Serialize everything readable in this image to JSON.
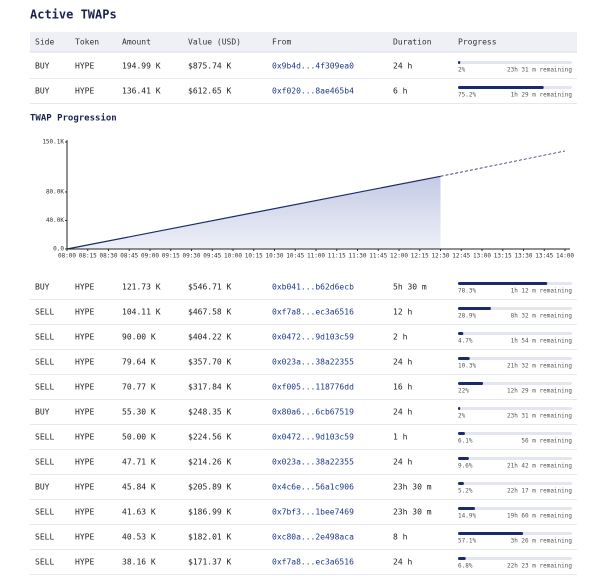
{
  "title": "Active TWAPs",
  "side_colors": {
    "BUY": "#1d8a5c",
    "SELL": "#d9463e"
  },
  "bar_color": "#1b2a6b",
  "track_color": "#e3e6ee",
  "table": {
    "headers": [
      "Side",
      "Token",
      "Amount",
      "Value (USD)",
      "From",
      "Duration",
      "Progress"
    ],
    "rows": [
      [
        "BUY",
        "HYPE",
        "194.99 K",
        "$875.74 K",
        "0x9b4d...4f309ea0",
        "24 h",
        "2%",
        "23h 31 m remaining"
      ],
      [
        "BUY",
        "HYPE",
        "136.41 K",
        "$612.65 K",
        "0xf020...8ae465b4",
        "6 h",
        "75.2%",
        "1h 29 m remaining"
      ]
    ],
    "progress": [
      2,
      75.2
    ]
  },
  "chart": {
    "type": "area",
    "title": "TWAP Progression",
    "xticks": [
      "08:00",
      "08:15",
      "08:30",
      "08:45",
      "09:00",
      "09:15",
      "09:30",
      "09:45",
      "10:00",
      "10:15",
      "10:30",
      "10:45",
      "11:00",
      "11:15",
      "11:30",
      "11:45",
      "12:00",
      "12:15",
      "12:30",
      "12:45",
      "13:00",
      "13:15",
      "13:30",
      "13:45",
      "14:00"
    ],
    "ylim": [
      0,
      150100
    ],
    "yticks": [
      {
        "value": 0,
        "label": "0.0"
      },
      {
        "value": 40000,
        "label": "40.0K"
      },
      {
        "value": 80000,
        "label": "80.0K"
      },
      {
        "value": 150100,
        "label": "150.1K"
      }
    ],
    "series": [
      {
        "x": [
          "08:00",
          "12:30"
        ],
        "values": [
          0,
          102000
        ],
        "color": "#1b2a6b",
        "style": "solid",
        "fill": true
      },
      {
        "x": [
          "12:30",
          "14:00"
        ],
        "values": [
          102000,
          137500
        ],
        "color": "#1b2a6b",
        "style": "dashed",
        "fill": false
      }
    ]
  },
  "table2": {
    "rows": [
      [
        "BUY",
        "HYPE",
        "121.73 K",
        "$546.71 K",
        "0xb041...b62d6ecb",
        "5h 30 m",
        "78.3%",
        "1h 12 m remaining"
      ],
      [
        "SELL",
        "HYPE",
        "104.11 K",
        "$467.58 K",
        "0xf7a8...ec3a6516",
        "12 h",
        "28.9%",
        "8h 32 m remaining"
      ],
      [
        "SELL",
        "HYPE",
        "90.00 K",
        "$404.22 K",
        "0x0472...9d103c59",
        "2 h",
        "4.7%",
        "1h 54 m remaining"
      ],
      [
        "SELL",
        "HYPE",
        "79.64 K",
        "$357.70 K",
        "0x023a...38a22355",
        "24 h",
        "10.3%",
        "21h 32 m remaining"
      ],
      [
        "SELL",
        "HYPE",
        "70.77 K",
        "$317.84 K",
        "0xf005...118776dd",
        "16 h",
        "22%",
        "12h 29 m remaining"
      ],
      [
        "BUY",
        "HYPE",
        "55.30 K",
        "$248.35 K",
        "0x80a6...6cb67519",
        "24 h",
        "2%",
        "23h 31 m remaining"
      ],
      [
        "SELL",
        "HYPE",
        "50.00 K",
        "$224.56 K",
        "0x0472...9d103c59",
        "1 h",
        "6.1%",
        "56 m remaining"
      ],
      [
        "SELL",
        "HYPE",
        "47.71 K",
        "$214.26 K",
        "0x023a...38a22355",
        "24 h",
        "9.6%",
        "21h 42 m remaining"
      ],
      [
        "BUY",
        "HYPE",
        "45.84 K",
        "$205.89 K",
        "0x4c6e...56a1c906",
        "23h 30 m",
        "5.2%",
        "22h 17 m remaining"
      ],
      [
        "SELL",
        "HYPE",
        "41.63 K",
        "$186.99 K",
        "0x7bf3...1bee7469",
        "23h 30 m",
        "14.9%",
        "19h 60 m remaining"
      ],
      [
        "SELL",
        "HYPE",
        "40.53 K",
        "$182.01 K",
        "0xc80a...2e498aca",
        "8 h",
        "57.1%",
        "3h 26 m remaining"
      ],
      [
        "SELL",
        "HYPE",
        "38.16 K",
        "$171.37 K",
        "0xf7a8...ec3a6516",
        "24 h",
        "6.8%",
        "22h 23 m remaining"
      ]
    ],
    "progress": [
      78.3,
      28.9,
      4.7,
      10.3,
      22,
      2,
      6.1,
      9.6,
      5.2,
      14.9,
      57.1,
      6.8
    ]
  }
}
